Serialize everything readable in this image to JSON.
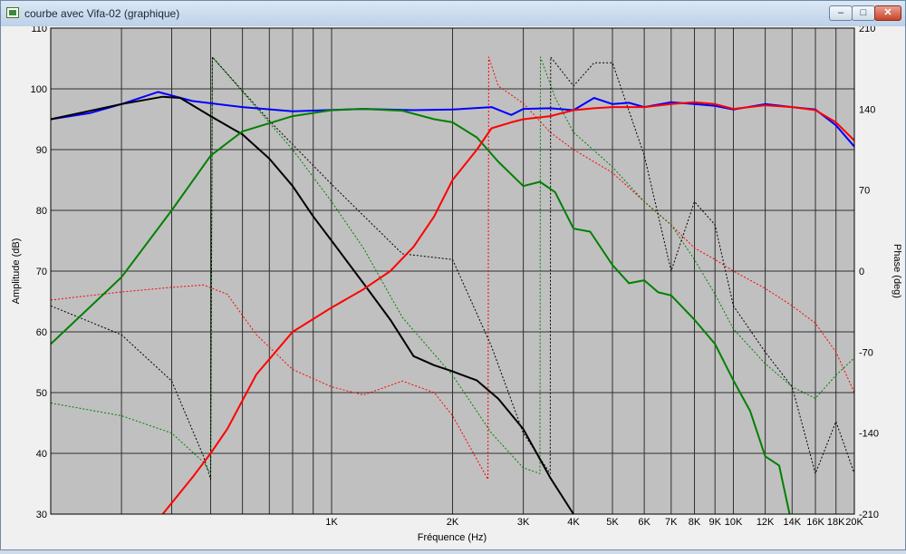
{
  "window": {
    "title": "courbe avec Vifa-02 (graphique)"
  },
  "title_buttons": {
    "minimize": "–",
    "maximize": "□",
    "close": "✕"
  },
  "colors": {
    "plot_bg": "#c0c0c0",
    "grid": "#303030",
    "black": "#000000",
    "green": "#008000",
    "red": "#ff0000",
    "blue": "#0000ff"
  },
  "chart_data": {
    "type": "line",
    "xlabel": "Fréquence (Hz)",
    "ylabel": "Amplitude (dB)",
    "y2label": "Phase (deg)",
    "x_scale": "log",
    "xlim": [
      200,
      20000
    ],
    "ylim": [
      30,
      110
    ],
    "y2lim": [
      -210,
      210
    ],
    "grid": true,
    "x_ticks": [
      {
        "v": 1000,
        "label": "1K"
      },
      {
        "v": 2000,
        "label": "2K"
      },
      {
        "v": 3000,
        "label": "3K"
      },
      {
        "v": 4000,
        "label": "4K"
      },
      {
        "v": 5000,
        "label": "5K"
      },
      {
        "v": 6000,
        "label": "6K"
      },
      {
        "v": 7000,
        "label": "7K"
      },
      {
        "v": 8000,
        "label": "8K"
      },
      {
        "v": 9000,
        "label": "9K"
      },
      {
        "v": 10000,
        "label": "10K"
      },
      {
        "v": 12000,
        "label": "12K"
      },
      {
        "v": 14000,
        "label": "14K"
      },
      {
        "v": 16000,
        "label": "16K"
      },
      {
        "v": 18000,
        "label": "18K"
      },
      {
        "v": 20000,
        "label": "20K"
      }
    ],
    "x_grid_extra": [
      300,
      400,
      500,
      600,
      700,
      800,
      900
    ],
    "y_ticks": [
      30,
      40,
      50,
      60,
      70,
      80,
      90,
      100,
      110
    ],
    "y2_ticks": [
      -210,
      -140,
      -70,
      0,
      70,
      140,
      210
    ],
    "series": [
      {
        "color": "#0000ff",
        "style": "solid",
        "axis": "left",
        "points": [
          [
            200,
            95
          ],
          [
            250,
            96
          ],
          [
            300,
            97.5
          ],
          [
            370,
            99.5
          ],
          [
            450,
            98
          ],
          [
            600,
            97
          ],
          [
            800,
            96.3
          ],
          [
            1200,
            96.7
          ],
          [
            1600,
            96.5
          ],
          [
            2000,
            96.6
          ],
          [
            2500,
            97
          ],
          [
            2800,
            95.7
          ],
          [
            3000,
            96.7
          ],
          [
            3500,
            96.8
          ],
          [
            4000,
            96.5
          ],
          [
            4500,
            98.5
          ],
          [
            5000,
            97.5
          ],
          [
            5500,
            97.7
          ],
          [
            6000,
            97
          ],
          [
            7000,
            97.8
          ],
          [
            8000,
            97.5
          ],
          [
            9000,
            97.2
          ],
          [
            10000,
            96.6
          ],
          [
            12000,
            97.5
          ],
          [
            14000,
            97
          ],
          [
            16000,
            96.6
          ],
          [
            18000,
            94
          ],
          [
            20000,
            90.5
          ]
        ]
      },
      {
        "color": "#000000",
        "style": "solid",
        "axis": "left",
        "points": [
          [
            200,
            95
          ],
          [
            300,
            97.5
          ],
          [
            380,
            98.7
          ],
          [
            420,
            98.5
          ],
          [
            500,
            95.5
          ],
          [
            600,
            92.5
          ],
          [
            700,
            88.5
          ],
          [
            800,
            84
          ],
          [
            900,
            79
          ],
          [
            1000,
            75
          ],
          [
            1200,
            68
          ],
          [
            1400,
            62
          ],
          [
            1600,
            56
          ],
          [
            1800,
            54.5
          ],
          [
            2000,
            53.5
          ],
          [
            2300,
            52
          ],
          [
            2600,
            49
          ],
          [
            3000,
            44
          ],
          [
            3500,
            36
          ],
          [
            4000,
            30
          ]
        ]
      },
      {
        "color": "#008000",
        "style": "solid",
        "axis": "left",
        "points": [
          [
            200,
            58
          ],
          [
            300,
            69
          ],
          [
            400,
            80
          ],
          [
            500,
            89
          ],
          [
            600,
            93
          ],
          [
            800,
            95.5
          ],
          [
            1000,
            96.5
          ],
          [
            1200,
            96.7
          ],
          [
            1500,
            96.4
          ],
          [
            1800,
            95
          ],
          [
            2000,
            94.5
          ],
          [
            2300,
            92
          ],
          [
            2600,
            88
          ],
          [
            3000,
            84
          ],
          [
            3300,
            84.7
          ],
          [
            3600,
            83
          ],
          [
            4000,
            77
          ],
          [
            4400,
            76.5
          ],
          [
            5000,
            71
          ],
          [
            5500,
            68
          ],
          [
            6000,
            68.5
          ],
          [
            6500,
            66.5
          ],
          [
            7000,
            66
          ],
          [
            8000,
            62
          ],
          [
            9000,
            58
          ],
          [
            10000,
            52
          ],
          [
            11000,
            47
          ],
          [
            12000,
            39.5
          ],
          [
            13000,
            38
          ],
          [
            13800,
            30
          ]
        ]
      },
      {
        "color": "#ff0000",
        "style": "solid",
        "axis": "left",
        "points": [
          [
            380,
            30
          ],
          [
            450,
            36
          ],
          [
            500,
            40
          ],
          [
            550,
            44
          ],
          [
            650,
            53
          ],
          [
            800,
            60
          ],
          [
            1000,
            64
          ],
          [
            1200,
            67
          ],
          [
            1400,
            70
          ],
          [
            1600,
            74
          ],
          [
            1800,
            79
          ],
          [
            2000,
            85
          ],
          [
            2300,
            90
          ],
          [
            2500,
            93.5
          ],
          [
            2800,
            94.5
          ],
          [
            3000,
            95
          ],
          [
            3500,
            95.5
          ],
          [
            4000,
            96.5
          ],
          [
            4500,
            96.8
          ],
          [
            5000,
            97
          ],
          [
            6000,
            97
          ],
          [
            7000,
            97.5
          ],
          [
            8000,
            97.8
          ],
          [
            9000,
            97.5
          ],
          [
            10000,
            96.7
          ],
          [
            12000,
            97.3
          ],
          [
            14000,
            97
          ],
          [
            16000,
            96.5
          ],
          [
            18000,
            94.5
          ],
          [
            20000,
            91.5
          ]
        ]
      },
      {
        "color": "#ff0000",
        "style": "dashed",
        "axis": "right",
        "points": [
          [
            200,
            -25
          ],
          [
            300,
            -18
          ],
          [
            400,
            -14
          ],
          [
            480,
            -12
          ],
          [
            550,
            -20
          ],
          [
            650,
            -55
          ],
          [
            800,
            -85
          ],
          [
            1000,
            -100
          ],
          [
            1200,
            -107
          ],
          [
            1500,
            -95
          ],
          [
            1800,
            -105
          ],
          [
            2000,
            -125
          ],
          [
            2450,
            -180
          ],
          [
            2460,
            185
          ],
          [
            2600,
            160
          ],
          [
            3000,
            145
          ],
          [
            3500,
            120
          ],
          [
            4000,
            105
          ],
          [
            5000,
            85
          ],
          [
            6000,
            60
          ],
          [
            7000,
            40
          ],
          [
            8000,
            20
          ],
          [
            9000,
            10
          ],
          [
            10000,
            0
          ],
          [
            12000,
            -15
          ],
          [
            14000,
            -30
          ],
          [
            16000,
            -45
          ],
          [
            18000,
            -70
          ],
          [
            20000,
            -105
          ]
        ]
      },
      {
        "color": "#008000",
        "style": "dashed",
        "axis": "right",
        "points": [
          [
            200,
            -114
          ],
          [
            300,
            -125
          ],
          [
            400,
            -140
          ],
          [
            480,
            -165
          ],
          [
            500,
            -175
          ],
          [
            505,
            185
          ],
          [
            600,
            155
          ],
          [
            800,
            105
          ],
          [
            1000,
            60
          ],
          [
            1200,
            20
          ],
          [
            1500,
            -40
          ],
          [
            2000,
            -90
          ],
          [
            2500,
            -140
          ],
          [
            3000,
            -170
          ],
          [
            3300,
            -175
          ],
          [
            3310,
            185
          ],
          [
            3600,
            150
          ],
          [
            4000,
            120
          ],
          [
            5000,
            90
          ],
          [
            6000,
            60
          ],
          [
            7000,
            40
          ],
          [
            8000,
            10
          ],
          [
            9000,
            -20
          ],
          [
            10000,
            -50
          ],
          [
            12000,
            -80
          ],
          [
            14000,
            -100
          ],
          [
            16000,
            -110
          ],
          [
            18000,
            -90
          ],
          [
            20000,
            -75
          ]
        ]
      },
      {
        "color": "#000000",
        "style": "dashed",
        "axis": "right",
        "points": [
          [
            200,
            -30
          ],
          [
            300,
            -55
          ],
          [
            400,
            -95
          ],
          [
            480,
            -160
          ],
          [
            500,
            -180
          ],
          [
            505,
            185
          ],
          [
            700,
            130
          ],
          [
            1000,
            75
          ],
          [
            1500,
            15
          ],
          [
            2000,
            10
          ],
          [
            2500,
            -65
          ],
          [
            3000,
            -140
          ],
          [
            3500,
            -175
          ],
          [
            3510,
            185
          ],
          [
            4000,
            160
          ],
          [
            4500,
            180
          ],
          [
            5000,
            180
          ],
          [
            6000,
            100
          ],
          [
            7000,
            0
          ],
          [
            8000,
            60
          ],
          [
            9000,
            40
          ],
          [
            10000,
            -30
          ],
          [
            12000,
            -70
          ],
          [
            14000,
            -100
          ],
          [
            16000,
            -175
          ],
          [
            18000,
            -130
          ],
          [
            20000,
            -175
          ]
        ]
      }
    ]
  }
}
